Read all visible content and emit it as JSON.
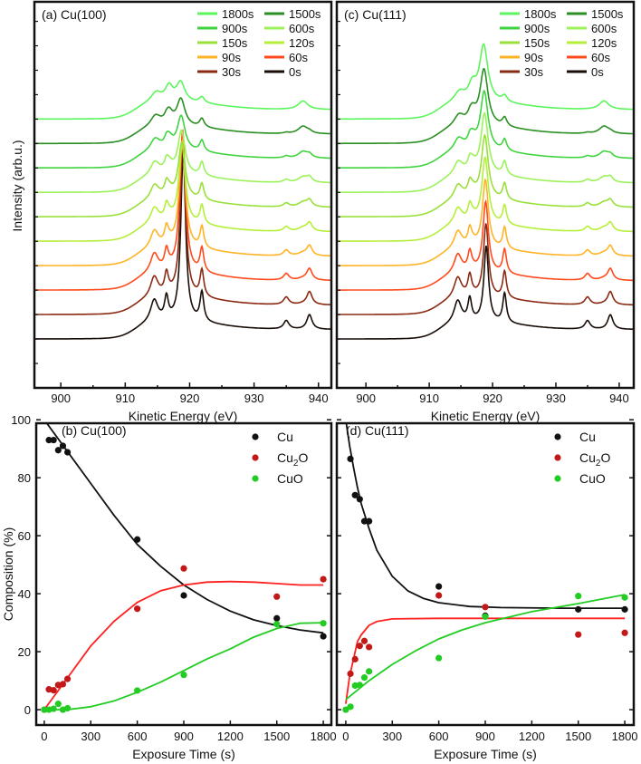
{
  "chart_data": [
    {
      "type": "line",
      "panel": "a",
      "title": "(a) Cu(100)",
      "xlabel": "Kinetic Energy  (eV)",
      "ylabel": "Intensity (arb.u.)",
      "xlim": [
        895.9,
        942
      ],
      "xticks": [
        900,
        910,
        920,
        930,
        940
      ],
      "legend_rows": [
        [
          "1800s",
          "1500s"
        ],
        [
          "900s",
          "600s"
        ],
        [
          "150s",
          "120s"
        ],
        [
          "90s",
          "60s"
        ],
        [
          "30s",
          "0s"
        ]
      ],
      "series": [
        {
          "name": "0s",
          "color": "#1a0d08",
          "main_peak": 7.0
        },
        {
          "name": "30s",
          "color": "#8b2a12",
          "main_peak": 6.4
        },
        {
          "name": "60s",
          "color": "#ff4a1c",
          "main_peak": 5.8
        },
        {
          "name": "90s",
          "color": "#ffb326",
          "main_peak": 4.4
        },
        {
          "name": "120s",
          "color": "#b5ef3a",
          "main_peak": 3.2
        },
        {
          "name": "150s",
          "color": "#99e03a",
          "main_peak": 2.3
        },
        {
          "name": "600s",
          "color": "#9cf25a",
          "main_peak": 1.8
        },
        {
          "name": "900s",
          "color": "#3fd43f",
          "main_peak": 1.4
        },
        {
          "name": "1500s",
          "color": "#2a8f22",
          "main_peak": 1.1
        },
        {
          "name": "1800s",
          "color": "#5cf55c",
          "main_peak": 0.8
        }
      ]
    },
    {
      "type": "scatter",
      "panel": "b",
      "title": "(b) Cu(100)",
      "xlabel": "Exposure Time (s)",
      "ylabel": "Composition (%)",
      "xlim": [
        -52,
        1852
      ],
      "ylim": [
        -5.3,
        98.8
      ],
      "xticks": [
        0,
        300,
        600,
        900,
        1200,
        1500,
        1800
      ],
      "yticks": [
        0,
        20,
        40,
        60,
        80,
        100
      ],
      "legend_position": "top-right",
      "series": [
        {
          "name": "Cu",
          "sub": "",
          "tail": "",
          "color": "#111111",
          "line_color": "#111111",
          "x": [
            0,
            30,
            60,
            90,
            120,
            150,
            600,
            900,
            1500,
            1800
          ],
          "y": [
            100,
            93,
            93,
            89.5,
            91,
            88.8,
            58.7,
            39.4,
            31.5,
            25.3
          ],
          "fit": [
            [
              0,
              100
            ],
            [
              150,
              89
            ],
            [
              300,
              78
            ],
            [
              450,
              67
            ],
            [
              600,
              57
            ],
            [
              750,
              49.5
            ],
            [
              900,
              43
            ],
            [
              1050,
              38
            ],
            [
              1200,
              34
            ],
            [
              1350,
              31
            ],
            [
              1500,
              29
            ],
            [
              1650,
              27.5
            ],
            [
              1800,
              26.5
            ]
          ]
        },
        {
          "name": "Cu",
          "sub": "2",
          "tail": "O",
          "color": "#c21818",
          "line_color": "#ff2020",
          "x": [
            0,
            30,
            60,
            90,
            120,
            150,
            600,
            900,
            1500,
            1800
          ],
          "y": [
            0,
            7,
            6.7,
            8.5,
            8.8,
            10.6,
            34.8,
            48.7,
            39,
            45
          ],
          "fit": [
            [
              0,
              0
            ],
            [
              75,
              5.5
            ],
            [
              150,
              11
            ],
            [
              300,
              22
            ],
            [
              450,
              30.5
            ],
            [
              600,
              37
            ],
            [
              750,
              41
            ],
            [
              900,
              43
            ],
            [
              1050,
              44
            ],
            [
              1200,
              44.2
            ],
            [
              1350,
              44
            ],
            [
              1500,
              43.5
            ],
            [
              1650,
              43
            ],
            [
              1800,
              43
            ]
          ]
        },
        {
          "name": "CuO",
          "sub": "",
          "tail": "",
          "color": "#22cc22",
          "line_color": "#22cc22",
          "x": [
            0,
            30,
            60,
            90,
            120,
            150,
            600,
            900,
            1500,
            1800
          ],
          "y": [
            0,
            0,
            0.3,
            2,
            0,
            0.5,
            6.6,
            12,
            29.5,
            29.8
          ],
          "fit": [
            [
              0,
              0
            ],
            [
              150,
              0
            ],
            [
              300,
              1
            ],
            [
              450,
              3
            ],
            [
              600,
              6
            ],
            [
              750,
              9.5
            ],
            [
              900,
              13.5
            ],
            [
              1050,
              17.5
            ],
            [
              1200,
              21
            ],
            [
              1350,
              25
            ],
            [
              1500,
              28
            ],
            [
              1650,
              29.8
            ],
            [
              1800,
              30
            ]
          ]
        }
      ]
    },
    {
      "type": "line",
      "panel": "c",
      "title": "(c) Cu(111)",
      "xlabel": "Kinetic Energy  (eV)",
      "ylabel": "",
      "xlim": [
        895.4,
        942.3
      ],
      "xticks": [
        900,
        910,
        920,
        930,
        940
      ],
      "legend_rows": [
        [
          "1800s",
          "1500s"
        ],
        [
          "900s",
          "600s"
        ],
        [
          "150s",
          "120s"
        ],
        [
          "90s",
          "60s"
        ],
        [
          "30s",
          "0s"
        ]
      ],
      "series": [
        {
          "name": "0s",
          "color": "#1a0d08",
          "main_peak": 3.1
        },
        {
          "name": "30s",
          "color": "#8b2a12",
          "main_peak": 3.0
        },
        {
          "name": "60s",
          "color": "#ff4a1c",
          "main_peak": 2.9
        },
        {
          "name": "90s",
          "color": "#ffb326",
          "main_peak": 2.8
        },
        {
          "name": "120s",
          "color": "#b5ef3a",
          "main_peak": 2.7
        },
        {
          "name": "150s",
          "color": "#99e03a",
          "main_peak": 2.6
        },
        {
          "name": "600s",
          "color": "#9cf25a",
          "main_peak": 2.5
        },
        {
          "name": "900s",
          "color": "#3fd43f",
          "main_peak": 2.4
        },
        {
          "name": "1500s",
          "color": "#2a8f22",
          "main_peak": 2.3
        },
        {
          "name": "1800s",
          "color": "#5cf55c",
          "main_peak": 2.3
        }
      ]
    },
    {
      "type": "scatter",
      "panel": "d",
      "title": "(d) Cu(111)",
      "xlabel": "Exposure Time (s)",
      "ylabel": "",
      "xlim": [
        -58,
        1858
      ],
      "ylim": [
        -5.3,
        98.8
      ],
      "xticks": [
        0,
        300,
        600,
        900,
        1200,
        1500,
        1800
      ],
      "yticks": [
        0,
        20,
        40,
        60,
        80,
        100
      ],
      "legend_position": "top-right",
      "series": [
        {
          "name": "Cu",
          "sub": "",
          "tail": "",
          "color": "#111111",
          "line_color": "#111111",
          "x": [
            0,
            30,
            60,
            90,
            120,
            150,
            600,
            900,
            1500,
            1800
          ],
          "y": [
            100,
            86.5,
            74,
            72.6,
            65,
            65,
            42.5,
            32.4,
            34.6,
            34.6
          ],
          "fit": [
            [
              0,
              100
            ],
            [
              25,
              91
            ],
            [
              50,
              83.5
            ],
            [
              75,
              76.7
            ],
            [
              100,
              71
            ],
            [
              150,
              62.5
            ],
            [
              200,
              55
            ],
            [
              300,
              46
            ],
            [
              400,
              41
            ],
            [
              500,
              38.4
            ],
            [
              600,
              36.9
            ],
            [
              800,
              35.6
            ],
            [
              1000,
              35.2
            ],
            [
              1400,
              35
            ],
            [
              1800,
              35
            ]
          ]
        },
        {
          "name": "Cu",
          "sub": "2",
          "tail": "O",
          "color": "#c21818",
          "line_color": "#ff2020",
          "x": [
            30,
            60,
            90,
            120,
            150,
            600,
            900,
            1500,
            1800
          ],
          "y": [
            12.4,
            17.4,
            22,
            23.7,
            21.6,
            39.4,
            35.4,
            25.9,
            26.5
          ],
          "fit": [
            [
              0,
              2
            ],
            [
              25,
              11.6
            ],
            [
              50,
              17.5
            ],
            [
              75,
              23.5
            ],
            [
              100,
              25.8
            ],
            [
              150,
              29.1
            ],
            [
              200,
              30.4
            ],
            [
              300,
              31.3
            ],
            [
              600,
              31.5
            ],
            [
              1800,
              31.5
            ]
          ]
        },
        {
          "name": "CuO",
          "sub": "",
          "tail": "",
          "color": "#22cc22",
          "line_color": "#22cc22",
          "x": [
            0,
            30,
            60,
            90,
            120,
            150,
            600,
            900,
            1500,
            1800
          ],
          "y": [
            0,
            1,
            8.3,
            8.5,
            11.1,
            13.2,
            17.8,
            32.1,
            39.2,
            38.7
          ],
          "fit": [
            [
              0,
              3.5
            ],
            [
              150,
              10
            ],
            [
              300,
              15.6
            ],
            [
              450,
              20.3
            ],
            [
              600,
              24.4
            ],
            [
              750,
              27.5
            ],
            [
              900,
              30
            ],
            [
              1200,
              33.8
            ],
            [
              1500,
              36.6
            ],
            [
              1800,
              39.7
            ]
          ]
        }
      ]
    }
  ]
}
